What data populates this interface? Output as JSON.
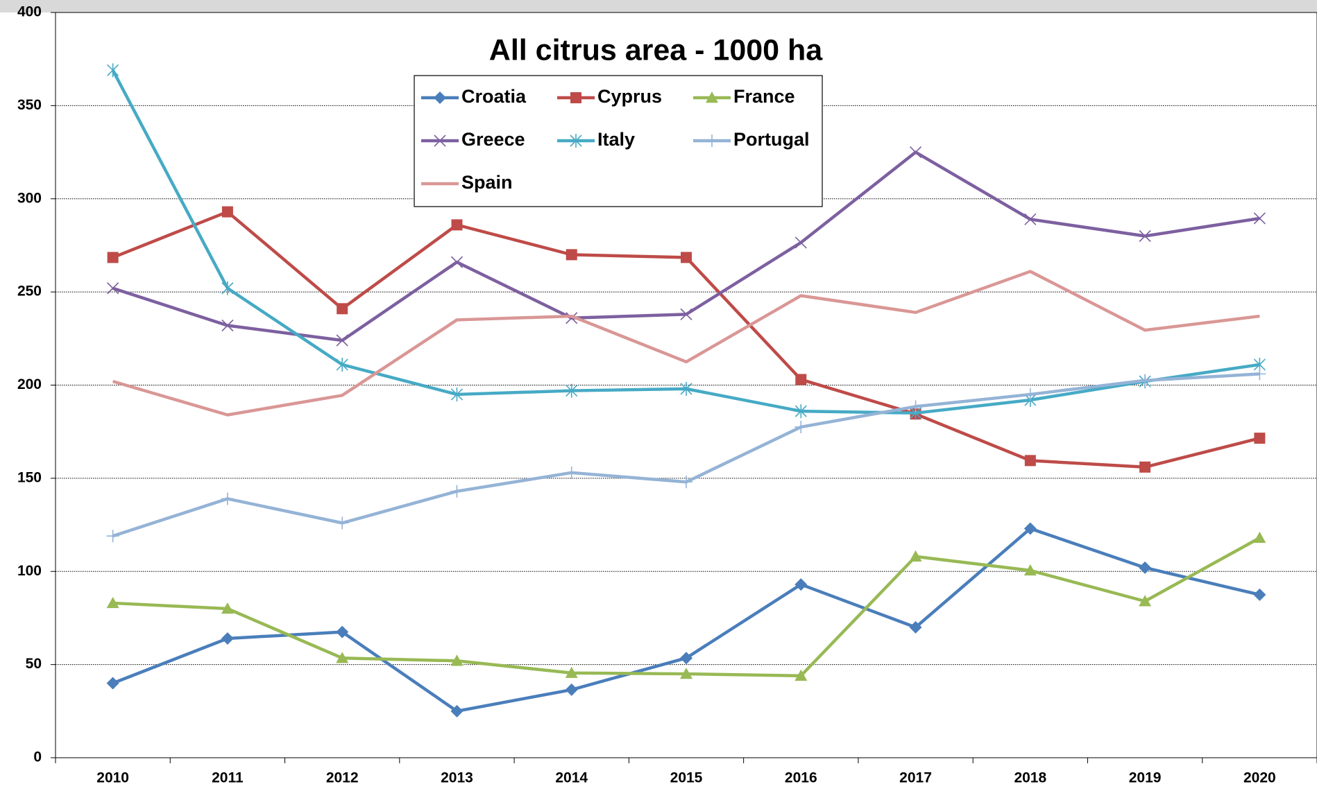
{
  "chart_data": {
    "type": "line",
    "title": "All citrus area - 1000 ha",
    "categories": [
      "2010",
      "2011",
      "2012",
      "2013",
      "2014",
      "2015",
      "2016",
      "2017",
      "2018",
      "2019",
      "2020"
    ],
    "ylim": [
      0,
      400
    ],
    "yticks": [
      0,
      50,
      100,
      150,
      200,
      250,
      300,
      350,
      400
    ],
    "grid": true,
    "series": [
      {
        "name": "Croatia",
        "color": "#4a7ebb",
        "marker": "diamond",
        "values": [
          40,
          64,
          67.5,
          25,
          36.5,
          53.5,
          93,
          70,
          123,
          102,
          87.5
        ]
      },
      {
        "name": "Cyprus",
        "color": "#be4b48",
        "marker": "square",
        "values": [
          268.5,
          293,
          241,
          286,
          270,
          268.5,
          203,
          184.5,
          159.5,
          156,
          171.5
        ]
      },
      {
        "name": "France",
        "color": "#98b954",
        "marker": "triangle",
        "values": [
          83,
          80,
          53.5,
          52,
          45.5,
          45,
          44,
          108,
          100.5,
          84,
          118
        ]
      },
      {
        "name": "Greece",
        "color": "#7d60a0",
        "marker": "x",
        "values": [
          252,
          232,
          224,
          266,
          236,
          238,
          276.5,
          325,
          289,
          280,
          289.5
        ]
      },
      {
        "name": "Italy",
        "color": "#46aac5",
        "marker": "star",
        "values": [
          369,
          252,
          211,
          195,
          197,
          198,
          186,
          185,
          192,
          202,
          211
        ]
      },
      {
        "name": "Portugal",
        "color": "#94b3d6",
        "marker": "plus",
        "values": [
          119,
          139,
          126,
          143,
          153,
          148,
          177.5,
          188.5,
          195,
          202.5,
          206
        ]
      },
      {
        "name": "Spain",
        "color": "#d99795",
        "marker": "none",
        "values": [
          202,
          184,
          194.5,
          235,
          237,
          212.5,
          248,
          239,
          261,
          229.5,
          237
        ]
      }
    ]
  }
}
